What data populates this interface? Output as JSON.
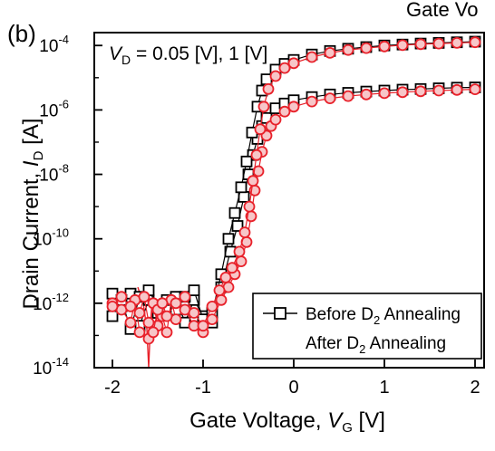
{
  "panel_label": "(b)",
  "top_fragment": "Gate Vo",
  "chart_data": {
    "type": "scatter",
    "annotation": {
      "v": "V",
      "sub": "D",
      "rest": " = 0.05 [V], 1 [V]"
    },
    "xlabel": {
      "main": "Gate Voltage, ",
      "var": "V",
      "sub": "G",
      "unit": " [V]"
    },
    "ylabel": {
      "main": "Drain Current, ",
      "var": "I",
      "sub": "D",
      "unit": " [A]"
    },
    "xlim": [
      -2.2,
      2.1
    ],
    "ylim": [
      -14,
      -3.6
    ],
    "yscale": "log",
    "x_ticks": [
      {
        "v": -2,
        "label": "-2"
      },
      {
        "v": -1,
        "label": "-1"
      },
      {
        "v": 0,
        "label": "0"
      },
      {
        "v": 1,
        "label": "1"
      },
      {
        "v": 2,
        "label": "2"
      }
    ],
    "y_ticks": [
      {
        "e": -14,
        "label": "10",
        "exp": "-14"
      },
      {
        "e": -12,
        "label": "10",
        "exp": "-12"
      },
      {
        "e": -10,
        "label": "10",
        "exp": "-10"
      },
      {
        "e": -8,
        "label": "10",
        "exp": "-8"
      },
      {
        "e": -6,
        "label": "10",
        "exp": "-6"
      },
      {
        "e": -4,
        "label": "10",
        "exp": "-4"
      }
    ],
    "legend": {
      "position": "bottom-right",
      "entries": [
        {
          "pre": "Before D",
          "sub": "2",
          "post": " Annealing"
        },
        {
          "pre": "After D",
          "sub": "2",
          "post": " Annealing"
        }
      ]
    },
    "colors": {
      "before": "#000000",
      "after": "#e8212a",
      "after_fill": "#f7c6c8"
    },
    "series": [
      {
        "name": "Before D2 Annealing",
        "condition": "VD = 0.05 V",
        "marker": "open-square",
        "points": [
          [
            -2,
            -12.4
          ],
          [
            -1.9,
            -12.1
          ],
          [
            -1.8,
            -11.7
          ],
          [
            -1.7,
            -12.7
          ],
          [
            -1.6,
            -11.9
          ],
          [
            -1.5,
            -12.3
          ],
          [
            -1.4,
            -12.2
          ],
          [
            -1.3,
            -11.8
          ],
          [
            -1.2,
            -12.6
          ],
          [
            -1.1,
            -11.9
          ],
          [
            -1.0,
            -12.4
          ],
          [
            -0.9,
            -12.6
          ],
          [
            -0.8,
            -11.5
          ],
          [
            -0.7,
            -10.4
          ],
          [
            -0.62,
            -9.6
          ],
          [
            -0.55,
            -8.7
          ],
          [
            -0.5,
            -8.0
          ],
          [
            -0.45,
            -7.4
          ],
          [
            -0.4,
            -6.9
          ],
          [
            -0.35,
            -6.5
          ],
          [
            -0.3,
            -6.25
          ],
          [
            -0.2,
            -5.95
          ],
          [
            -0.1,
            -5.8
          ],
          [
            0,
            -5.7
          ],
          [
            0.2,
            -5.6
          ],
          [
            0.4,
            -5.52
          ],
          [
            0.6,
            -5.47
          ],
          [
            0.8,
            -5.43
          ],
          [
            1.0,
            -5.4
          ],
          [
            1.2,
            -5.37
          ],
          [
            1.4,
            -5.35
          ],
          [
            1.6,
            -5.33
          ],
          [
            1.8,
            -5.31
          ],
          [
            2.0,
            -5.3
          ]
        ]
      },
      {
        "name": "Before D2 Annealing",
        "condition": "VD = 1 V",
        "marker": "open-square",
        "points": [
          [
            -2,
            -11.7
          ],
          [
            -1.9,
            -11.9
          ],
          [
            -1.8,
            -12.8
          ],
          [
            -1.7,
            -11.8
          ],
          [
            -1.6,
            -11.6
          ],
          [
            -1.5,
            -12.1
          ],
          [
            -1.4,
            -11.9
          ],
          [
            -1.3,
            -12.2
          ],
          [
            -1.2,
            -11.8
          ],
          [
            -1.1,
            -11.6
          ],
          [
            -1.0,
            -12.5
          ],
          [
            -0.9,
            -12.3
          ],
          [
            -0.8,
            -11.1
          ],
          [
            -0.72,
            -10.0
          ],
          [
            -0.65,
            -9.2
          ],
          [
            -0.58,
            -8.4
          ],
          [
            -0.52,
            -7.6
          ],
          [
            -0.46,
            -6.7
          ],
          [
            -0.4,
            -5.9
          ],
          [
            -0.35,
            -5.4
          ],
          [
            -0.3,
            -5.05
          ],
          [
            -0.2,
            -4.75
          ],
          [
            -0.1,
            -4.57
          ],
          [
            0,
            -4.45
          ],
          [
            0.2,
            -4.28
          ],
          [
            0.4,
            -4.17
          ],
          [
            0.6,
            -4.1
          ],
          [
            0.8,
            -4.05
          ],
          [
            1.0,
            -4.0
          ],
          [
            1.2,
            -3.97
          ],
          [
            1.4,
            -3.94
          ],
          [
            1.6,
            -3.92
          ],
          [
            1.8,
            -3.9
          ],
          [
            2.0,
            -3.88
          ]
        ]
      },
      {
        "name": "After D2 Annealing",
        "condition": "VD = 0.05 V",
        "marker": "open-circle",
        "points": [
          [
            -2,
            -12.0
          ],
          [
            -1.9,
            -12.2
          ],
          [
            -1.8,
            -12.6
          ],
          [
            -1.75,
            -11.9
          ],
          [
            -1.7,
            -12.9
          ],
          [
            -1.6,
            -13.1
          ],
          [
            -1.55,
            -12.0
          ],
          [
            -1.5,
            -12.7
          ],
          [
            -1.45,
            -12.4
          ],
          [
            -1.4,
            -12.9
          ],
          [
            -1.35,
            -11.9
          ],
          [
            -1.3,
            -12.5
          ],
          [
            -1.2,
            -12.2
          ],
          [
            -1.1,
            -12.7
          ],
          [
            -1.0,
            -12.9
          ],
          [
            -0.9,
            -12.5
          ],
          [
            -0.8,
            -11.9
          ],
          [
            -0.72,
            -11.5
          ],
          [
            -0.65,
            -11.1
          ],
          [
            -0.58,
            -10.7
          ],
          [
            -0.52,
            -10.1
          ],
          [
            -0.47,
            -9.3
          ],
          [
            -0.43,
            -8.5
          ],
          [
            -0.39,
            -7.9
          ],
          [
            -0.35,
            -7.3
          ],
          [
            -0.3,
            -6.8
          ],
          [
            -0.25,
            -6.5
          ],
          [
            -0.2,
            -6.3
          ],
          [
            -0.1,
            -6.05
          ],
          [
            0,
            -5.9
          ],
          [
            0.2,
            -5.74
          ],
          [
            0.4,
            -5.64
          ],
          [
            0.6,
            -5.57
          ],
          [
            0.8,
            -5.52
          ],
          [
            1.0,
            -5.48
          ],
          [
            1.2,
            -5.45
          ],
          [
            1.4,
            -5.42
          ],
          [
            1.6,
            -5.4
          ],
          [
            1.8,
            -5.38
          ],
          [
            2.0,
            -5.36
          ]
        ]
      },
      {
        "name": "After D2 Annealing",
        "condition": "VD = 1 V",
        "marker": "open-circle",
        "points": [
          [
            -2,
            -12.1
          ],
          [
            -1.9,
            -11.8
          ],
          [
            -1.8,
            -12.1
          ],
          [
            -1.7,
            -12.3
          ],
          [
            -1.65,
            -11.8
          ],
          [
            -1.6,
            -12.6
          ],
          [
            -1.55,
            -12.9
          ],
          [
            -1.5,
            -12.2
          ],
          [
            -1.45,
            -12.0
          ],
          [
            -1.4,
            -12.4
          ],
          [
            -1.3,
            -12.0
          ],
          [
            -1.2,
            -11.8
          ],
          [
            -1.1,
            -12.3
          ],
          [
            -1.0,
            -12.7
          ],
          [
            -0.9,
            -12.1
          ],
          [
            -0.82,
            -11.6
          ],
          [
            -0.75,
            -11.2
          ],
          [
            -0.68,
            -10.9
          ],
          [
            -0.6,
            -10.4
          ],
          [
            -0.54,
            -9.8
          ],
          [
            -0.49,
            -9.0
          ],
          [
            -0.45,
            -8.2
          ],
          [
            -0.41,
            -7.4
          ],
          [
            -0.37,
            -6.6
          ],
          [
            -0.33,
            -5.9
          ],
          [
            -0.28,
            -5.35
          ],
          [
            -0.2,
            -4.95
          ],
          [
            -0.1,
            -4.7
          ],
          [
            0,
            -4.55
          ],
          [
            0.2,
            -4.36
          ],
          [
            0.4,
            -4.23
          ],
          [
            0.6,
            -4.14
          ],
          [
            0.8,
            -4.08
          ],
          [
            1.0,
            -4.03
          ],
          [
            1.2,
            -3.99
          ],
          [
            1.4,
            -3.96
          ],
          [
            1.6,
            -3.94
          ],
          [
            1.8,
            -3.92
          ],
          [
            2.0,
            -3.9
          ]
        ]
      },
      {
        "name": "After D2 Annealing",
        "condition": "outlier trace",
        "marker": "line",
        "points": [
          [
            -1.72,
            -11.5
          ],
          [
            -1.66,
            -12.0
          ],
          [
            -1.62,
            -12.8
          ],
          [
            -1.6,
            -14.0
          ],
          [
            -1.58,
            -12.6
          ],
          [
            -1.56,
            -11.9
          ]
        ]
      }
    ]
  }
}
